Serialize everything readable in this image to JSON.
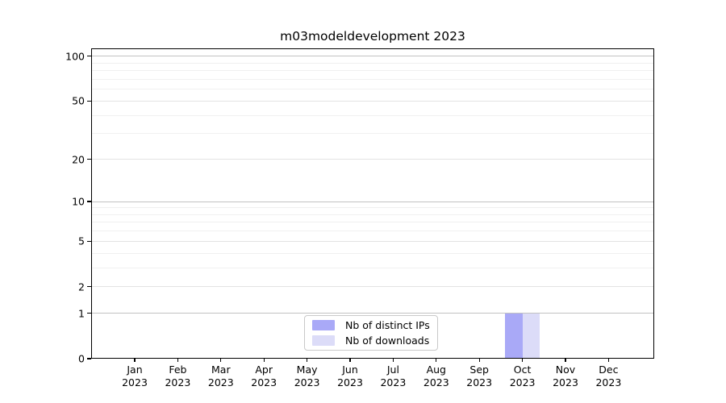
{
  "chart_data": {
    "type": "bar",
    "title": "m03modeldevelopment 2023",
    "categories": [
      {
        "month": "Jan",
        "year": "2023"
      },
      {
        "month": "Feb",
        "year": "2023"
      },
      {
        "month": "Mar",
        "year": "2023"
      },
      {
        "month": "Apr",
        "year": "2023"
      },
      {
        "month": "May",
        "year": "2023"
      },
      {
        "month": "Jun",
        "year": "2023"
      },
      {
        "month": "Jul",
        "year": "2023"
      },
      {
        "month": "Aug",
        "year": "2023"
      },
      {
        "month": "Sep",
        "year": "2023"
      },
      {
        "month": "Oct",
        "year": "2023"
      },
      {
        "month": "Nov",
        "year": "2023"
      },
      {
        "month": "Dec",
        "year": "2023"
      }
    ],
    "series": [
      {
        "name": "Nb of distinct IPs",
        "color": "#a9a9f7",
        "values": [
          0,
          0,
          0,
          0,
          0,
          0,
          0,
          0,
          0,
          1,
          0,
          0
        ]
      },
      {
        "name": "Nb of downloads",
        "color": "#dcdcf8",
        "values": [
          0,
          0,
          0,
          0,
          0,
          0,
          0,
          0,
          0,
          1,
          0,
          0
        ]
      }
    ],
    "yscale": "log1p",
    "ylim": [
      0,
      113
    ],
    "y_ticks": [
      0,
      1,
      2,
      5,
      10,
      20,
      50,
      100
    ],
    "y_major_gridlines": [
      1,
      10,
      100
    ],
    "y_minor_gridlines": [
      3,
      4,
      6,
      7,
      8,
      9,
      30,
      40,
      60,
      70,
      80,
      90
    ],
    "grid": true,
    "legend_position": "lower center"
  }
}
